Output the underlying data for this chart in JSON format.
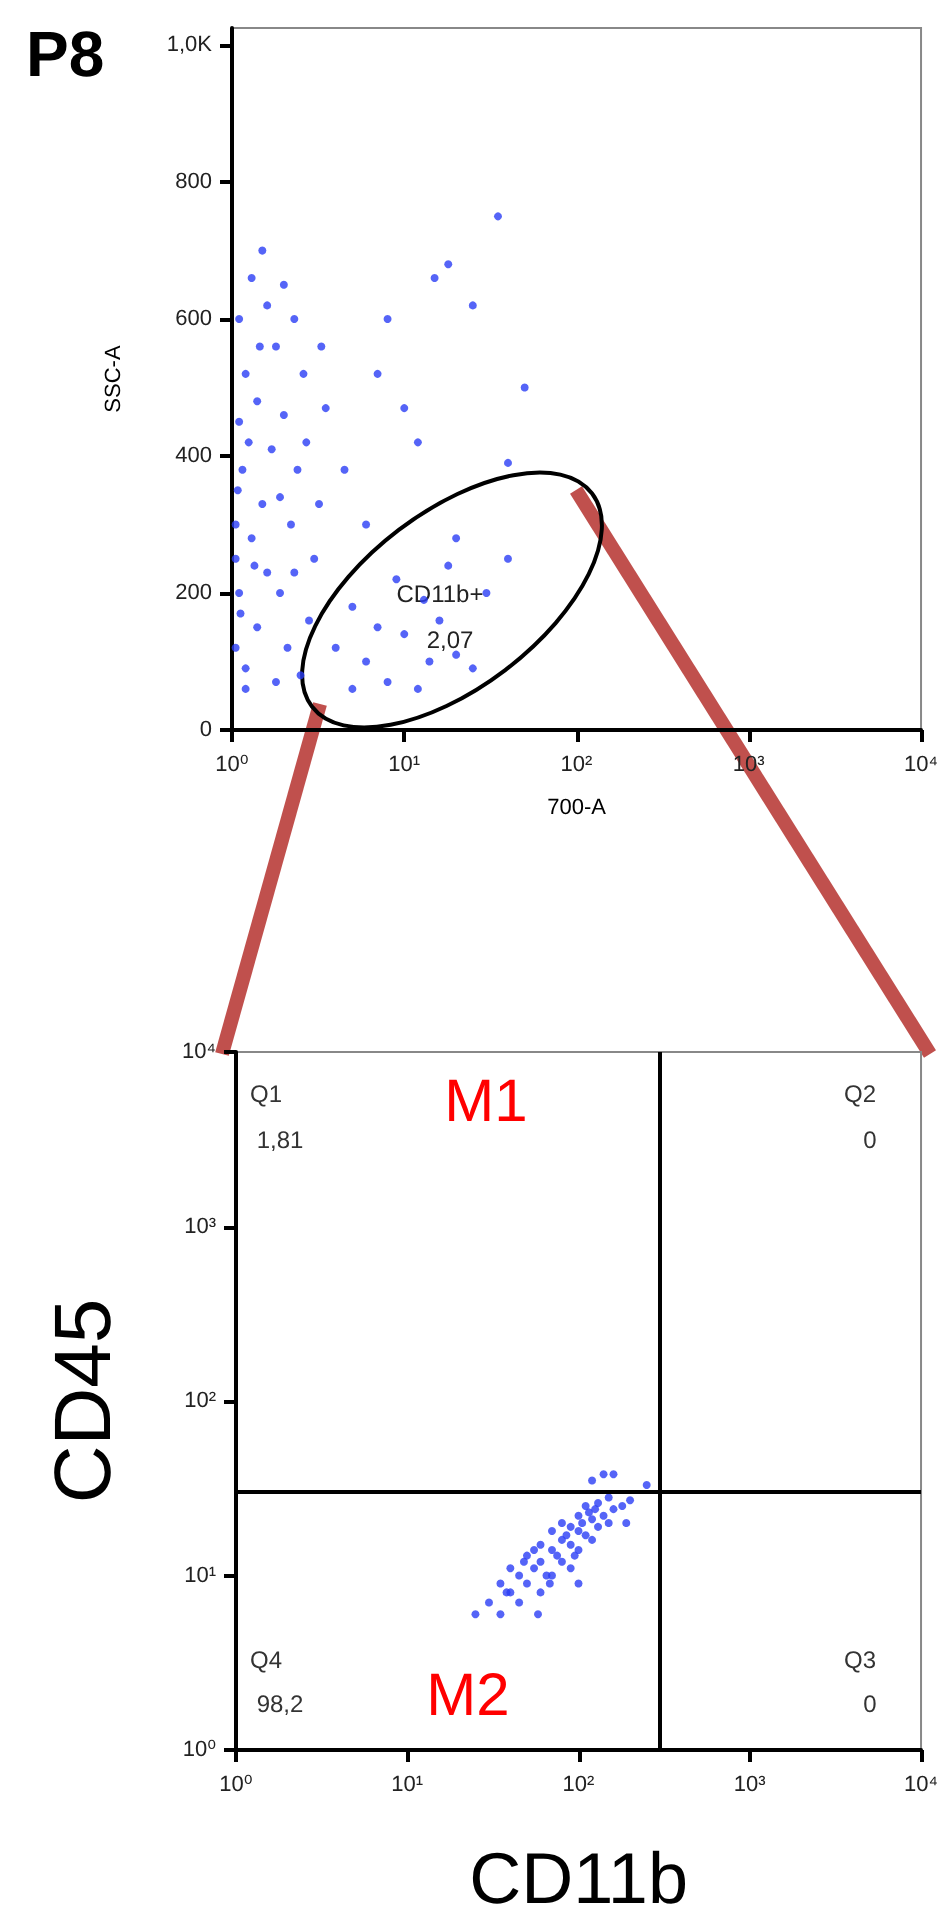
{
  "chart_data": [
    {
      "type": "scatter",
      "title": "P8",
      "xlabel": "700-A",
      "ylabel": "SSC-A",
      "log": "x",
      "grid": false,
      "marker": "circle",
      "xlim": [
        1,
        10000
      ],
      "ylim": [
        0,
        1025
      ],
      "xticks": [
        {
          "value": 1,
          "label": "10⁰"
        },
        {
          "value": 10,
          "label": "10¹"
        },
        {
          "value": 100,
          "label": "10²"
        },
        {
          "value": 1000,
          "label": "10³"
        },
        {
          "value": 10000,
          "label": "10⁴"
        }
      ],
      "yticks": [
        0,
        200,
        400,
        600,
        800,
        {
          "value": 1000,
          "label": "1,0K"
        }
      ],
      "annotations": [
        "CD11b+",
        "2,07"
      ],
      "series": [
        {
          "color": "#2b3df5",
          "x": [
            1.05,
            1.1,
            1.05,
            1.15,
            1.1,
            1.2,
            1.1,
            1.3,
            1.5,
            1.2,
            1.4,
            1.6,
            1.3,
            1.5,
            1.7,
            1.4,
            1.8,
            1.6,
            2.0,
            1.9,
            2.1,
            2.2,
            2.4,
            2.0,
            2.6,
            2.3,
            1.2,
            1.8,
            2.5,
            2.8,
            3.0,
            2.7,
            3.2,
            1.05,
            1.08,
            1.12,
            1.25,
            1.35,
            1.45,
            1.9,
            2.3,
            3.3,
            3.5,
            4.5,
            6,
            7,
            8,
            10,
            12,
            15,
            18,
            25,
            40,
            50,
            35,
            20,
            5,
            4,
            6,
            8,
            10,
            13,
            16,
            20,
            25,
            30,
            12,
            7,
            9,
            40,
            18,
            5,
            14
          ],
          "values": [
            120,
            200,
            300,
            380,
            450,
            520,
            600,
            660,
            700,
            90,
            150,
            230,
            280,
            330,
            410,
            480,
            560,
            620,
            650,
            200,
            120,
            300,
            380,
            460,
            520,
            600,
            60,
            70,
            80,
            160,
            250,
            420,
            330,
            250,
            350,
            170,
            420,
            240,
            560,
            340,
            230,
            560,
            470,
            380,
            300,
            520,
            600,
            470,
            420,
            660,
            680,
            620,
            390,
            500,
            750,
            280,
            180,
            120,
            100,
            70,
            140,
            190,
            160,
            110,
            90,
            200,
            60,
            150,
            220,
            250,
            240,
            60,
            100
          ]
        }
      ]
    },
    {
      "type": "scatter",
      "xlabel": "CD11b",
      "ylabel": "CD45",
      "log": "xy",
      "grid": false,
      "marker": "circle",
      "xlim": [
        1,
        10000
      ],
      "ylim": [
        1,
        10000
      ],
      "xticks": [
        {
          "value": 1,
          "label": "10⁰"
        },
        {
          "value": 10,
          "label": "10¹"
        },
        {
          "value": 100,
          "label": "10²"
        },
        {
          "value": 1000,
          "label": "10³"
        },
        {
          "value": 10000,
          "label": "10⁴"
        }
      ],
      "yticks": [
        {
          "value": 1,
          "label": "10⁰"
        },
        {
          "value": 10,
          "label": "10¹"
        },
        {
          "value": 100,
          "label": "10²"
        },
        {
          "value": 1000,
          "label": "10³"
        },
        {
          "value": 10000,
          "label": "10⁴"
        }
      ],
      "ref_lines": [
        {
          "axis": "x",
          "value": 300,
          "color": "#000000"
        },
        {
          "axis": "y",
          "value": 30,
          "color": "#000000"
        }
      ],
      "annotations": [
        "Q1",
        "1,81",
        "Q2",
        "0",
        "Q3",
        "0",
        "Q4",
        "98,2",
        "M1",
        "M2"
      ],
      "series": [
        {
          "color": "#2b3df5",
          "x": [
            25,
            30,
            35,
            35,
            40,
            40,
            45,
            45,
            50,
            50,
            55,
            60,
            60,
            60,
            70,
            70,
            70,
            80,
            80,
            80,
            90,
            90,
            90,
            100,
            100,
            100,
            110,
            110,
            120,
            120,
            130,
            130,
            140,
            150,
            150,
            160,
            180,
            200,
            120,
            140,
            160,
            250,
            55,
            65,
            75,
            85,
            95,
            105,
            115,
            125,
            38,
            48,
            58,
            68,
            100,
            190
          ],
          "values": [
            6,
            7,
            6,
            9,
            8,
            11,
            7,
            10,
            9,
            13,
            11,
            8,
            12,
            15,
            10,
            14,
            18,
            12,
            16,
            20,
            11,
            15,
            19,
            14,
            18,
            22,
            17,
            25,
            16,
            21,
            19,
            26,
            22,
            20,
            28,
            24,
            25,
            27,
            35,
            38,
            38,
            33,
            14,
            10,
            13,
            17,
            13,
            20,
            23,
            24,
            8,
            12,
            6,
            9,
            9,
            20
          ]
        }
      ]
    }
  ]
}
